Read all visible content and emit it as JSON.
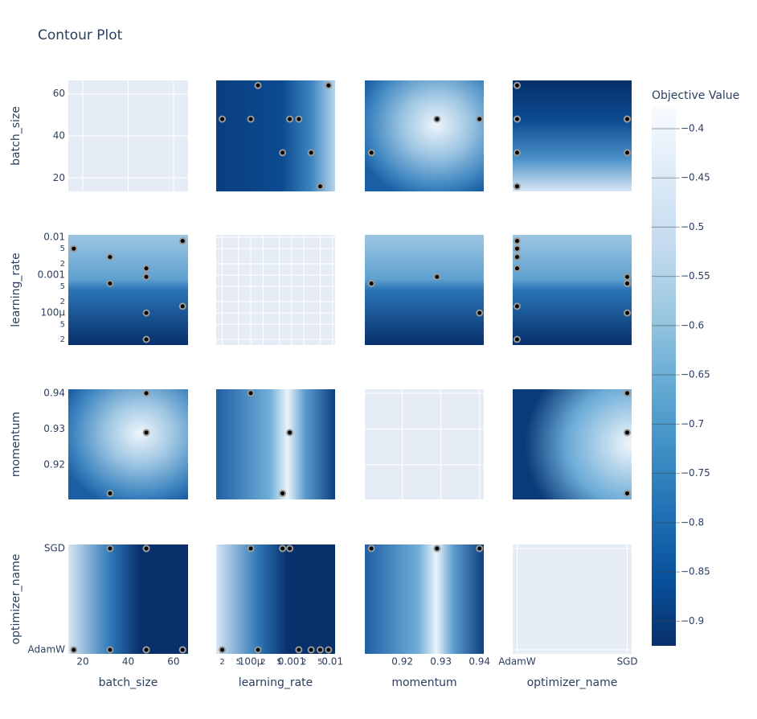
{
  "chart_data": {
    "type": "contour",
    "title": "Contour Plot",
    "params": [
      {
        "name": "batch_size",
        "scale": "linear",
        "lim": [
          13.6,
          66.4
        ],
        "ticks": [
          20,
          40,
          60
        ]
      },
      {
        "name": "learning_rate",
        "scale": "log",
        "lim": [
          1.42e-05,
          0.0116
        ],
        "ticks": [
          {
            "value": 2e-05,
            "label": "2"
          },
          {
            "value": 5e-05,
            "label": "5"
          },
          {
            "value": 0.0001,
            "label": "100μ"
          },
          {
            "value": 0.0002,
            "label": "2"
          },
          {
            "value": 0.0005,
            "label": "5"
          },
          0.001,
          {
            "value": 0.002,
            "label": "2"
          },
          {
            "value": 0.005,
            "label": "5"
          },
          0.01
        ]
      },
      {
        "name": "momentum",
        "scale": "linear",
        "lim": [
          0.9103,
          0.9411
        ],
        "ticks": [
          0.92,
          0.93,
          0.94
        ]
      },
      {
        "name": "optimizer_name",
        "scale": "category",
        "categories": [
          "AdamW",
          "SGD"
        ]
      }
    ],
    "trials": {
      "batch_size": [
        16,
        32,
        32,
        48,
        48,
        48,
        48,
        64,
        64
      ],
      "learning_rate": [
        0.005,
        0.003,
        0.0006,
        0.0015,
        0.0009,
        0.0001,
        2e-05,
        0.008,
        0.00015
      ],
      "momentum": [
        null,
        null,
        0.912,
        null,
        0.929,
        0.94,
        null,
        null,
        null
      ],
      "optimizer_name": [
        "AdamW",
        "AdamW",
        "SGD",
        "AdamW",
        "SGD",
        "SGD",
        "AdamW",
        "AdamW",
        "AdamW"
      ]
    },
    "colorbar": {
      "title": "Objective Value",
      "lim": [
        -0.925,
        -0.378
      ],
      "ticks": [
        {
          "value": -0.4,
          "label": "−0.4"
        },
        {
          "value": -0.45,
          "label": "−0.45"
        },
        {
          "value": -0.5,
          "label": "−0.5"
        },
        {
          "value": -0.55,
          "label": "−0.55"
        },
        {
          "value": -0.6,
          "label": "−0.6"
        },
        {
          "value": -0.65,
          "label": "−0.65"
        },
        {
          "value": -0.7,
          "label": "−0.7"
        },
        {
          "value": -0.75,
          "label": "−0.75"
        },
        {
          "value": -0.8,
          "label": "−0.8"
        },
        {
          "value": -0.85,
          "label": "−0.85"
        },
        {
          "value": -0.9,
          "label": "−0.9"
        }
      ],
      "colors": [
        "#08306b",
        "#08519c",
        "#2171b5",
        "#4292c6",
        "#6baed6",
        "#9ecae1",
        "#c6dbef",
        "#deebf7",
        "#f7fbff"
      ]
    }
  }
}
